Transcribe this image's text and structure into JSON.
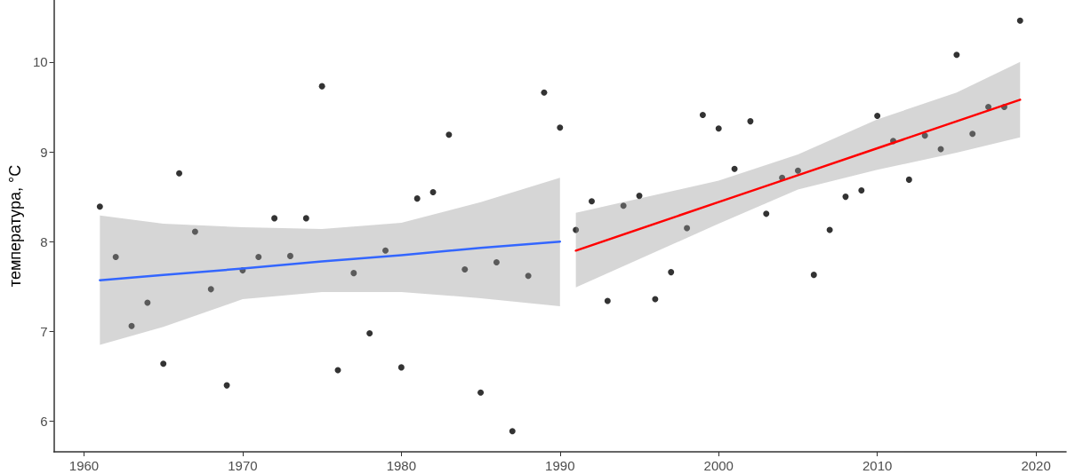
{
  "chart_data": {
    "type": "scatter",
    "ylabel": "температура, °C",
    "xlim": [
      1958.1,
      2021.9
    ],
    "xticks": [
      1960,
      1970,
      1980,
      1990,
      2000,
      2010,
      2020
    ],
    "ylim": [
      5.66,
      10.69
    ],
    "yticks": [
      6,
      7,
      8,
      9,
      10
    ],
    "grid": false,
    "marker": "circle",
    "series": [
      {
        "color": "#000000",
        "x": [
          1961,
          1962,
          1963,
          1964,
          1965,
          1966,
          1967,
          1968,
          1969,
          1970,
          1971,
          1972,
          1973,
          1974,
          1975,
          1976,
          1977,
          1978,
          1979,
          1980,
          1981,
          1982,
          1983,
          1984,
          1985,
          1986,
          1987,
          1988,
          1989,
          1990,
          1991,
          1992,
          1993,
          1994,
          1995,
          1996,
          1997,
          1998,
          1999,
          2000,
          2001,
          2002,
          2003,
          2004,
          2005,
          2006,
          2007,
          2008,
          2009,
          2010,
          2011,
          2012,
          2013,
          2014,
          2015,
          2016,
          2017,
          2018,
          2019
        ],
        "values": [
          8.39,
          7.83,
          7.06,
          7.32,
          6.64,
          8.76,
          8.11,
          7.47,
          6.4,
          7.68,
          7.83,
          8.26,
          7.84,
          8.26,
          9.73,
          6.57,
          7.65,
          6.98,
          7.9,
          6.6,
          8.48,
          8.55,
          9.19,
          7.69,
          6.32,
          7.77,
          5.89,
          7.62,
          9.66,
          9.27,
          8.13,
          8.45,
          7.34,
          8.4,
          8.51,
          7.36,
          7.66,
          8.15,
          9.41,
          9.26,
          8.81,
          9.34,
          8.31,
          8.71,
          8.79,
          7.63,
          8.13,
          8.5,
          8.57,
          9.4,
          9.12,
          8.69,
          9.18,
          9.03,
          10.08,
          9.2,
          9.5,
          9.5,
          10.46
        ]
      },
      {
        "type": "line",
        "marker": "none",
        "color": "#3366ff",
        "x": [
          1961,
          1965,
          1970,
          1975,
          1980,
          1985,
          1990
        ],
        "values": [
          7.57,
          7.63,
          7.7,
          7.78,
          7.85,
          7.93,
          8.0
        ],
        "lower": [
          6.85,
          7.05,
          7.36,
          7.44,
          7.44,
          7.37,
          7.28
        ],
        "upper": [
          8.29,
          8.2,
          8.16,
          8.14,
          8.21,
          8.44,
          8.71
        ]
      },
      {
        "type": "line",
        "marker": "none",
        "color": "#ff0000",
        "x": [
          1991,
          2000,
          2005,
          2010,
          2015,
          2019
        ],
        "values": [
          7.9,
          8.44,
          8.74,
          9.04,
          9.34,
          9.58
        ],
        "lower": [
          7.49,
          8.2,
          8.58,
          8.8,
          8.99,
          9.16
        ],
        "upper": [
          8.32,
          8.68,
          8.97,
          9.36,
          9.66,
          10.0
        ]
      }
    ]
  }
}
